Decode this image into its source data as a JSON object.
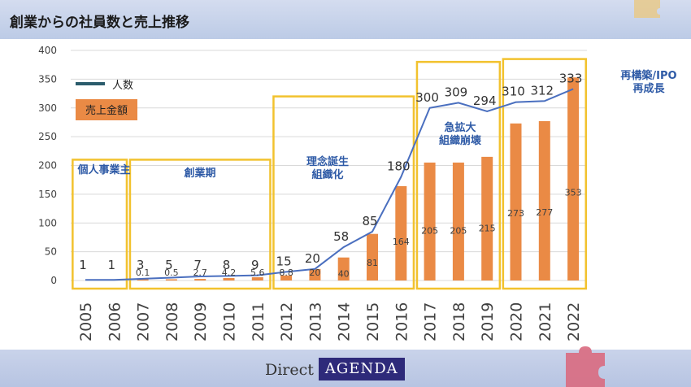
{
  "header": {
    "title": "創業からの社員数と売上推移"
  },
  "legend": {
    "employees_label": "人数",
    "sales_label": "売上金額"
  },
  "chart_data": {
    "type": "bar",
    "title": "創業からの社員数と売上推移",
    "categories": [
      "2005",
      "2006",
      "2007",
      "2008",
      "2009",
      "2010",
      "2011",
      "2012",
      "2013",
      "2014",
      "2015",
      "2016",
      "2017",
      "2018",
      "2019",
      "2020",
      "2021",
      "2022"
    ],
    "ylim": [
      0,
      400
    ],
    "yticks": [
      0,
      50,
      100,
      150,
      200,
      250,
      300,
      350,
      400
    ],
    "ytick_labels": [
      "0",
      "50",
      "100",
      "150",
      "200",
      "250",
      "300",
      "350",
      "400"
    ],
    "series": [
      {
        "name": "人数",
        "type": "line",
        "color": "#4a6fbf",
        "values": [
          1,
          1,
          3,
          5,
          7,
          8,
          9,
          15,
          20,
          58,
          85,
          180,
          300,
          309,
          294,
          310,
          312,
          333
        ],
        "labels": [
          "1",
          "1",
          "3",
          "5",
          "7",
          "8",
          "9",
          "15",
          "20",
          "58",
          "85",
          "180",
          "300",
          "309",
          "294",
          "310",
          "312",
          "333"
        ]
      },
      {
        "name": "売上金額",
        "type": "bar",
        "color": "#ea8a45",
        "values": [
          0,
          0,
          0.1,
          0.5,
          2.7,
          4.2,
          5.6,
          8.8,
          20,
          40,
          81,
          164,
          205,
          205,
          215,
          273,
          277,
          353
        ],
        "labels": [
          "",
          "",
          "0.1",
          "0.5",
          "2.7",
          "4.2",
          "5.6",
          "8.8",
          "20",
          "40",
          "81",
          "164",
          "205",
          "205",
          "215",
          "273",
          "277",
          "353"
        ]
      }
    ],
    "phases": [
      {
        "label": "個人事業主",
        "from": "2005",
        "to": "2006",
        "y_top": 210
      },
      {
        "label": "創業期",
        "from": "2007",
        "to": "2011",
        "y_top": 210
      },
      {
        "label": "理念誕生\n組織化",
        "from": "2012",
        "to": "2016",
        "y_top": 320
      },
      {
        "label": "急拡大\n組織崩壊",
        "from": "2017",
        "to": "2019",
        "y_top": 380
      },
      {
        "label": "再構築/IPO\n再成長",
        "from": "2020",
        "to": "2022",
        "y_top": 385
      }
    ]
  },
  "footer": {
    "brand_direct": "Direct",
    "brand_agenda": "AGENDA"
  }
}
